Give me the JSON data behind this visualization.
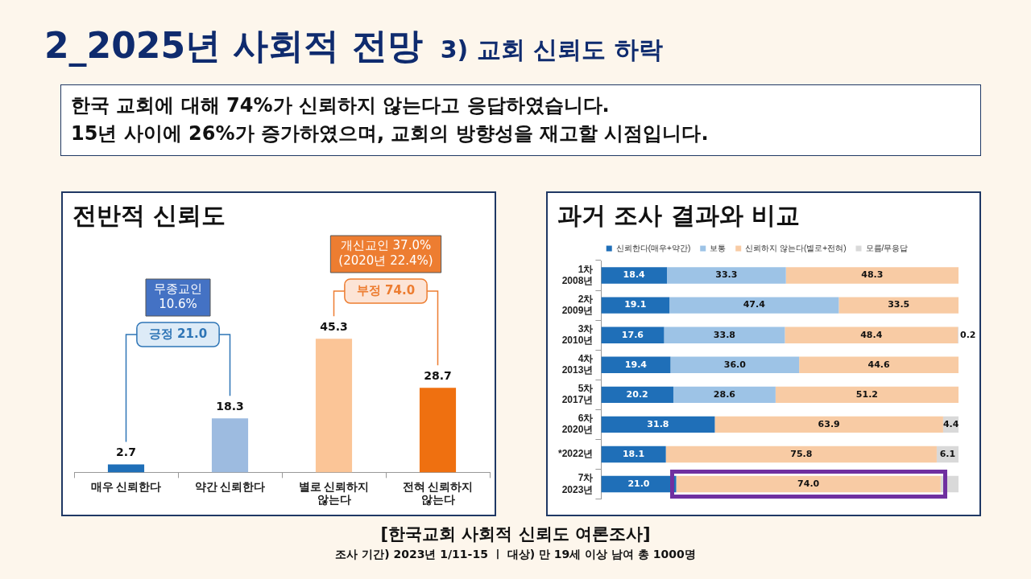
{
  "chart_data": [
    {
      "type": "other",
      "title": "2_2025년 사회적 전망",
      "subtitle": "3) 교회 신뢰도 하락",
      "annotations": [
        "한국 교회에 대해 74%가 신뢰하지 않는다고 응답하였습니다.",
        "15년 사이에 26%가 증가하였으며, 교회의 방향성을 재고할 시점입니다.",
        "[한국교회 사회적 신뢰도 여론조사]",
        "조사 기간) 2023년 1/11-15  ㅣ  대상) 만 19세 이상 남여 총 1000명"
      ]
    },
    {
      "type": "bar",
      "title": "전반적 신뢰도",
      "categories": [
        "매우 신뢰한다",
        "약간 신뢰한다",
        "별로 신뢰하지 않는다",
        "전혀 신뢰하지 않는다"
      ],
      "values": [
        2.7,
        18.3,
        45.3,
        28.7
      ],
      "colors": [
        "#1f6fb8",
        "#9dbbe0",
        "#fbc597",
        "#ef7010"
      ],
      "tick_labels": "x",
      "data_labels": true,
      "annotations": [
        "무종교인\n10.6%",
        "긍정 21.0",
        "개신교인 37.0%\n(2020년 22.4%)",
        "부정 74.0"
      ]
    },
    {
      "type": "bar",
      "orientation": "horizontal",
      "stacked": true,
      "title": "과거 조사 결과와 비교",
      "categories": [
        "1차 2008년",
        "2차 2009년",
        "3차 2010년",
        "4차 2013년",
        "5차 2017년",
        "6차 2020년",
        "*2022년",
        "7차 2023년"
      ],
      "xlim": [
        0,
        100
      ],
      "tick_labels": "y",
      "legend": "top",
      "series": [
        {
          "name": "신뢰한다(매우+약간)",
          "color": "#1f6fb8",
          "values": [
            18.4,
            19.1,
            17.6,
            19.4,
            20.2,
            31.8,
            18.1,
            21.0
          ],
          "value_labels": [
            "18.4",
            "19.1",
            "17.6",
            "19.4",
            "20.2",
            "31.8",
            "18.1",
            "21.0"
          ]
        },
        {
          "name": "보통",
          "color": "#9dc3e6",
          "values": [
            33.3,
            47.4,
            33.8,
            36.0,
            28.6,
            null,
            null,
            null
          ],
          "value_labels": [
            "33.3",
            "47.4",
            "33.8",
            "36.0",
            "28.6",
            null,
            null,
            null
          ]
        },
        {
          "name": "신뢰하지 않는다(별로+전혀)",
          "color": "#f8cba4",
          "values": [
            48.3,
            33.5,
            48.4,
            44.6,
            51.2,
            63.9,
            75.8,
            74.0
          ],
          "value_labels": [
            "48.3",
            "33.5",
            "48.4",
            "44.6",
            "51.2",
            "63.9",
            "75.8",
            "74.0"
          ]
        },
        {
          "name": "모름/무응답",
          "color": "#d9d9d9",
          "values": [
            null,
            null,
            0.2,
            null,
            null,
            4.4,
            6.1,
            5.0
          ],
          "value_labels": [
            null,
            null,
            "0.2",
            null,
            null,
            "4.4",
            "6.1",
            null
          ]
        }
      ]
    }
  ]
}
